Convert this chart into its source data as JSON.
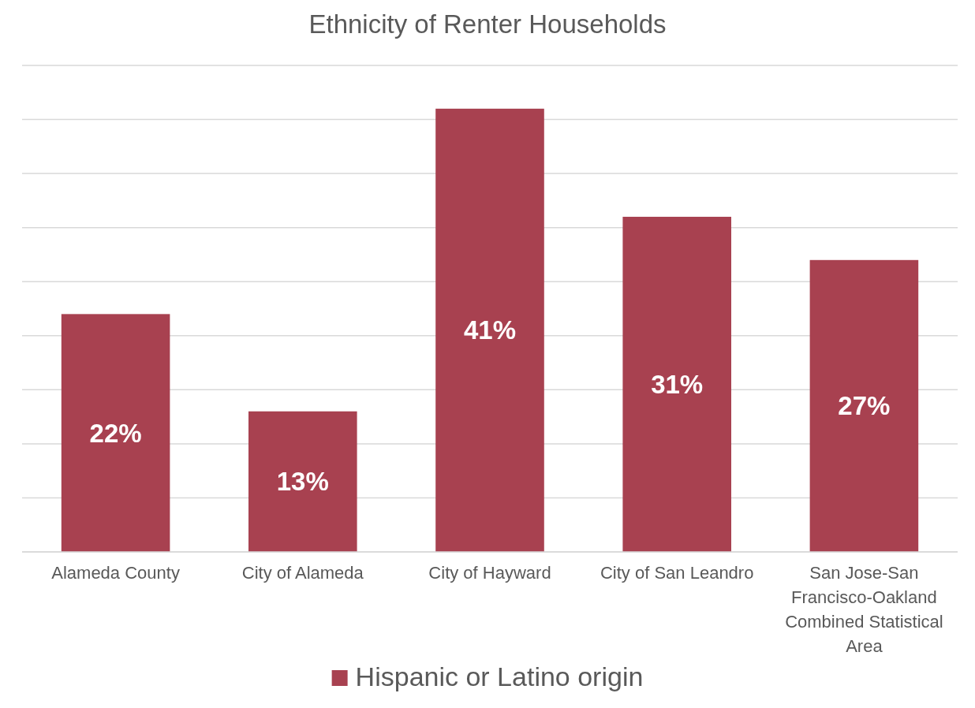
{
  "chart_data": {
    "type": "bar",
    "title": "Ethnicity of Renter Households",
    "categories": [
      "Alameda County",
      "City of Alameda",
      "City of Hayward",
      "City of San Leandro",
      "San Jose-San Francisco-Oakland Combined Statistical Area"
    ],
    "series": [
      {
        "name": "Hispanic or Latino origin",
        "color": "#a84150",
        "values": [
          22,
          13,
          41,
          31,
          27
        ],
        "value_labels": [
          "22%",
          "13%",
          "41%",
          "31%",
          "27%"
        ]
      }
    ],
    "ylim": [
      0,
      45
    ],
    "yticks": [
      {
        "value": 0,
        "label": null
      },
      {
        "value": 5,
        "label": null
      },
      {
        "value": 10,
        "label": null
      },
      {
        "value": 15,
        "label": null
      },
      {
        "value": 20,
        "label": null
      },
      {
        "value": 25,
        "label": null
      },
      {
        "value": 30,
        "label": null
      },
      {
        "value": 35,
        "label": null
      },
      {
        "value": 40,
        "label": null
      },
      {
        "value": 45,
        "label": null
      }
    ],
    "grid": "y",
    "legend": "bottom",
    "tick_labels": "x"
  }
}
